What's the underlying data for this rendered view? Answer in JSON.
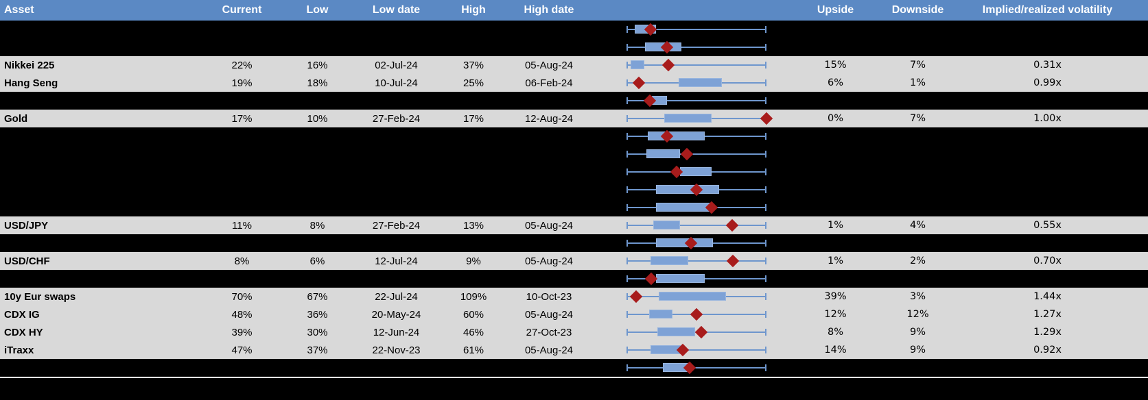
{
  "header": {
    "columns": [
      "Asset",
      "Current",
      "Low",
      "Low date",
      "High",
      "High date",
      "",
      "Upside",
      "Downside",
      "Implied/realized volatility"
    ]
  },
  "colors": {
    "header_bg": "#5b89c4",
    "header_text": "#ffffff",
    "row_light": "#d9d9d9",
    "row_dark": "#000000",
    "whisker_blue": "#6e96cd",
    "box_fill_blue": "#7ea2d6",
    "box_border_blue": "#98b5de",
    "marker_red": "#a81c1c"
  },
  "chart_data": {
    "type": "table",
    "note": "rows[].plot values are normalized 0-1 positions along each row's low-high whisker range (box = interquartile band, marker = red diamond current value)"
  },
  "rows": [
    {
      "asset": "",
      "current": "",
      "low": "",
      "low_date": "",
      "high": "",
      "high_date": "",
      "upside": "",
      "downside": "",
      "implied_realized": "",
      "bg": "dark",
      "plot": {
        "box_start": 0.06,
        "box_end": 0.21,
        "marker": 0.17
      }
    },
    {
      "asset": "",
      "current": "",
      "low": "",
      "low_date": "",
      "high": "",
      "high_date": "",
      "upside": "",
      "downside": "",
      "implied_realized": "",
      "bg": "dark",
      "plot": {
        "box_start": 0.13,
        "box_end": 0.39,
        "marker": 0.29
      }
    },
    {
      "asset": "Nikkei 225",
      "current": "22%",
      "low": "16%",
      "low_date": "02-Jul-24",
      "high": "37%",
      "high_date": "05-Aug-24",
      "upside": "15%",
      "downside": "7%",
      "implied_realized": "0.31x",
      "bg": "light",
      "plot": {
        "box_start": 0.03,
        "box_end": 0.13,
        "marker": 0.3
      }
    },
    {
      "asset": "Hang Seng",
      "current": "19%",
      "low": "18%",
      "low_date": "10-Jul-24",
      "high": "25%",
      "high_date": "06-Feb-24",
      "upside": "6%",
      "downside": "1%",
      "implied_realized": "0.99x",
      "bg": "light",
      "plot": {
        "box_start": 0.37,
        "box_end": 0.68,
        "marker": 0.09
      }
    },
    {
      "asset": "",
      "current": "",
      "low": "",
      "low_date": "",
      "high": "",
      "high_date": "",
      "upside": "",
      "downside": "",
      "implied_realized": "",
      "bg": "dark",
      "plot": {
        "box_start": 0.18,
        "box_end": 0.29,
        "marker": 0.165
      }
    },
    {
      "asset": "Gold",
      "current": "17%",
      "low": "10%",
      "low_date": "27-Feb-24",
      "high": "17%",
      "high_date": "12-Aug-24",
      "upside": "0%",
      "downside": "7%",
      "implied_realized": "1.00x",
      "bg": "light",
      "plot": {
        "box_start": 0.27,
        "box_end": 0.61,
        "marker": 1.0
      }
    },
    {
      "asset": "",
      "current": "",
      "low": "",
      "low_date": "",
      "high": "",
      "high_date": "",
      "upside": "",
      "downside": "",
      "implied_realized": "",
      "bg": "dark",
      "plot": {
        "box_start": 0.15,
        "box_end": 0.56,
        "marker": 0.29
      }
    },
    {
      "asset": "",
      "current": "",
      "low": "",
      "low_date": "",
      "high": "",
      "high_date": "",
      "upside": "",
      "downside": "",
      "implied_realized": "",
      "bg": "dark",
      "plot": {
        "box_start": 0.14,
        "box_end": 0.38,
        "marker": 0.43
      }
    },
    {
      "asset": "",
      "current": "",
      "low": "",
      "low_date": "",
      "high": "",
      "high_date": "",
      "upside": "",
      "downside": "",
      "implied_realized": "",
      "bg": "dark",
      "plot": {
        "box_start": 0.38,
        "box_end": 0.61,
        "marker": 0.36
      }
    },
    {
      "asset": "",
      "current": "",
      "low": "",
      "low_date": "",
      "high": "",
      "high_date": "",
      "upside": "",
      "downside": "",
      "implied_realized": "",
      "bg": "dark",
      "plot": {
        "box_start": 0.21,
        "box_end": 0.66,
        "marker": 0.5
      }
    },
    {
      "asset": "",
      "current": "",
      "low": "",
      "low_date": "",
      "high": "",
      "high_date": "",
      "upside": "",
      "downside": "",
      "implied_realized": "",
      "bg": "dark",
      "plot": {
        "box_start": 0.21,
        "box_end": 0.6,
        "marker": 0.61
      }
    },
    {
      "asset": "USD/JPY",
      "current": "11%",
      "low": "8%",
      "low_date": "27-Feb-24",
      "high": "13%",
      "high_date": "05-Aug-24",
      "upside": "1%",
      "downside": "4%",
      "implied_realized": "0.55x",
      "bg": "light",
      "plot": {
        "box_start": 0.19,
        "box_end": 0.38,
        "marker": 0.755
      }
    },
    {
      "asset": "",
      "current": "",
      "low": "",
      "low_date": "",
      "high": "",
      "high_date": "",
      "upside": "",
      "downside": "",
      "implied_realized": "",
      "bg": "dark",
      "plot": {
        "box_start": 0.21,
        "box_end": 0.62,
        "marker": 0.46
      }
    },
    {
      "asset": "USD/CHF",
      "current": "8%",
      "low": "6%",
      "low_date": "12-Jul-24",
      "high": "9%",
      "high_date": "05-Aug-24",
      "upside": "1%",
      "downside": "2%",
      "implied_realized": "0.70x",
      "bg": "light",
      "plot": {
        "box_start": 0.17,
        "box_end": 0.44,
        "marker": 0.76
      }
    },
    {
      "asset": "",
      "current": "",
      "low": "",
      "low_date": "",
      "high": "",
      "high_date": "",
      "upside": "",
      "downside": "",
      "implied_realized": "",
      "bg": "dark",
      "plot": {
        "box_start": 0.21,
        "box_end": 0.56,
        "marker": 0.175
      }
    },
    {
      "asset": "10y Eur swaps",
      "current": "70%",
      "low": "67%",
      "low_date": "22-Jul-24",
      "high": "109%",
      "high_date": "10-Oct-23",
      "upside": "39%",
      "downside": "3%",
      "implied_realized": "1.44x",
      "bg": "light",
      "plot": {
        "box_start": 0.23,
        "box_end": 0.71,
        "marker": 0.07
      }
    },
    {
      "asset": "CDX IG",
      "current": "48%",
      "low": "36%",
      "low_date": "20-May-24",
      "high": "60%",
      "high_date": "05-Aug-24",
      "upside": "12%",
      "downside": "12%",
      "implied_realized": "1.27x",
      "bg": "light",
      "plot": {
        "box_start": 0.16,
        "box_end": 0.33,
        "marker": 0.5
      }
    },
    {
      "asset": "CDX HY",
      "current": "39%",
      "low": "30%",
      "low_date": "12-Jun-24",
      "high": "46%",
      "high_date": "27-Oct-23",
      "upside": "8%",
      "downside": "9%",
      "implied_realized": "1.29x",
      "bg": "light",
      "plot": {
        "box_start": 0.22,
        "box_end": 0.49,
        "marker": 0.535
      }
    },
    {
      "asset": "iTraxx",
      "current": "47%",
      "low": "37%",
      "low_date": "22-Nov-23",
      "high": "61%",
      "high_date": "05-Aug-24",
      "upside": "14%",
      "downside": "9%",
      "implied_realized": "0.92x",
      "bg": "light",
      "plot": {
        "box_start": 0.17,
        "box_end": 0.4,
        "marker": 0.4
      }
    },
    {
      "asset": "",
      "current": "",
      "low": "",
      "low_date": "",
      "high": "",
      "high_date": "",
      "upside": "",
      "downside": "",
      "implied_realized": "",
      "bg": "dark",
      "plot": {
        "box_start": 0.26,
        "box_end": 0.45,
        "marker": 0.45
      }
    }
  ]
}
